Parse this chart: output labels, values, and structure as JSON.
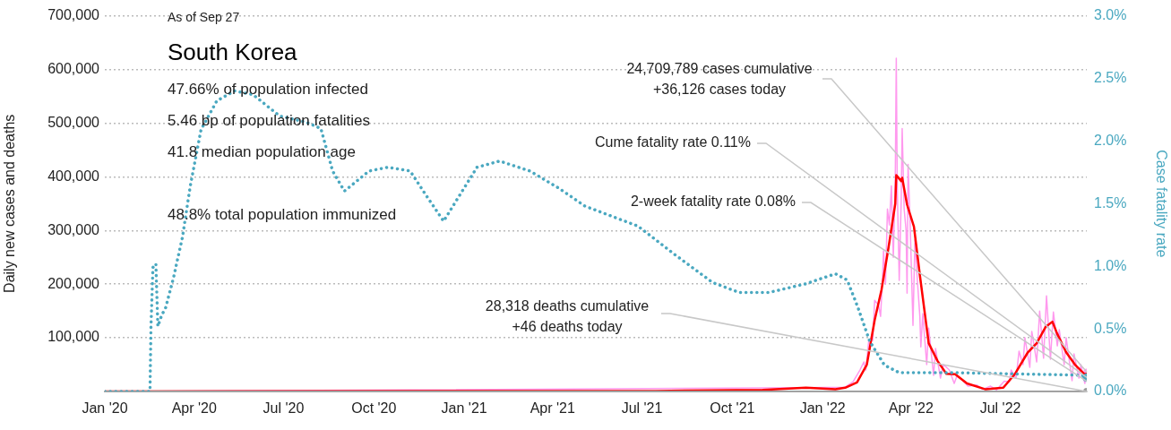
{
  "chart_data": {
    "type": "line",
    "title": "South Korea",
    "ylabel": "Daily new cases and deaths",
    "y2label": "Case fatality rate",
    "xlim": [
      "2020-01-01",
      "2022-09-27"
    ],
    "xticks": [
      {
        "value": "2020-01",
        "label": "Jan '20"
      },
      {
        "value": "2020-04",
        "label": "Apr '20"
      },
      {
        "value": "2020-07",
        "label": "Jul '20"
      },
      {
        "value": "2020-10",
        "label": "Oct '20"
      },
      {
        "value": "2021-01",
        "label": "Jan '21"
      },
      {
        "value": "2021-04",
        "label": "Apr '21"
      },
      {
        "value": "2021-07",
        "label": "Jul '21"
      },
      {
        "value": "2021-10",
        "label": "Oct '21"
      },
      {
        "value": "2022-01",
        "label": "Jan '22"
      },
      {
        "value": "2022-04",
        "label": "Apr '22"
      },
      {
        "value": "2022-07",
        "label": "Jul '22"
      }
    ],
    "ylim": [
      0,
      700000
    ],
    "yticks": [
      {
        "value": 0,
        "label": null
      },
      {
        "value": 100000,
        "label": "100,000"
      },
      {
        "value": 200000,
        "label": "200,000"
      },
      {
        "value": 300000,
        "label": "300,000"
      },
      {
        "value": 400000,
        "label": "400,000"
      },
      {
        "value": 500000,
        "label": "500,000"
      },
      {
        "value": 600000,
        "label": "600,000"
      },
      {
        "value": 700000,
        "label": "700,000"
      }
    ],
    "y2lim": [
      0,
      3
    ],
    "y2ticks": [
      {
        "value": 0,
        "label": "0.0%"
      },
      {
        "value": 0.5,
        "label": "0.5%"
      },
      {
        "value": 1,
        "label": "1.0%"
      },
      {
        "value": 1.5,
        "label": "1.5%"
      },
      {
        "value": 2,
        "label": "2.0%"
      },
      {
        "value": 2.5,
        "label": "2.5%"
      },
      {
        "value": 3,
        "label": "3.0%"
      }
    ],
    "grid": "y",
    "legend": false,
    "series": [
      {
        "color": "#ff99ee",
        "x": [
          "2020-01-01",
          "2021-12-15",
          "2022-01-24",
          "2022-02-01",
          "2022-02-08",
          "2022-02-12",
          "2022-02-14",
          "2022-02-17",
          "2022-02-20",
          "2022-02-21",
          "2022-02-23",
          "2022-02-27",
          "2022-03-01",
          "2022-03-03",
          "2022-03-04",
          "2022-03-06",
          "2022-03-08",
          "2022-03-10",
          "2022-03-12",
          "2022-03-14",
          "2022-03-16",
          "2022-03-17",
          "2022-03-18",
          "2022-03-20",
          "2022-03-22",
          "2022-03-23",
          "2022-03-25",
          "2022-03-27",
          "2022-03-28",
          "2022-03-29",
          "2022-03-31",
          "2022-04-03",
          "2022-04-05",
          "2022-04-07",
          "2022-04-10",
          "2022-04-11",
          "2022-04-13",
          "2022-04-17",
          "2022-04-19",
          "2022-04-24",
          "2022-04-26",
          "2022-05-01",
          "2022-05-04",
          "2022-05-10",
          "2022-05-15",
          "2022-05-18",
          "2022-05-25",
          "2022-05-29",
          "2022-06-07",
          "2022-06-13",
          "2022-06-21",
          "2022-06-27",
          "2022-07-05",
          "2022-07-10",
          "2022-07-12",
          "2022-07-17",
          "2022-07-20",
          "2022-07-24",
          "2022-07-26",
          "2022-07-31",
          "2022-08-02",
          "2022-08-07",
          "2022-08-10",
          "2022-08-14",
          "2022-08-17",
          "2022-08-21",
          "2022-08-24",
          "2022-08-28",
          "2022-08-30",
          "2022-09-04",
          "2022-09-06",
          "2022-09-12",
          "2022-09-14",
          "2022-09-19",
          "2022-09-21",
          "2022-09-25",
          "2022-09-27"
        ],
        "values": [
          0,
          7000,
          8000,
          18000,
          40000,
          55000,
          40000,
          95000,
          100000,
          95000,
          170000,
          160000,
          140000,
          210000,
          262000,
          200000,
          340000,
          310000,
          383000,
          250000,
          400000,
          621000,
          380000,
          207000,
          355000,
          490000,
          340000,
          300000,
          183000,
          423000,
          320000,
          123000,
          283000,
          220000,
          140000,
          83000,
          145000,
          50000,
          118000,
          30000,
          80000,
          25000,
          50000,
          40000,
          15000,
          30000,
          18000,
          10000,
          12000,
          4000,
          10000,
          3000,
          19000,
          18000,
          40000,
          25000,
          75000,
          50000,
          100000,
          45000,
          112000,
          55000,
          150000,
          62000,
          178000,
          60000,
          148000,
          85000,
          115000,
          50000,
          100000,
          20000,
          70000,
          25000,
          50000,
          15000,
          36126
        ]
      },
      {
        "color": "#ff0000",
        "x": [
          "2020-01-01",
          "2021-07-15",
          "2021-11-01",
          "2021-12-15",
          "2022-01-14",
          "2022-01-24",
          "2022-02-05",
          "2022-02-15",
          "2022-02-23",
          "2022-03-02",
          "2022-03-09",
          "2022-03-16",
          "2022-03-17",
          "2022-03-22",
          "2022-03-23",
          "2022-03-28",
          "2022-04-04",
          "2022-04-10",
          "2022-04-19",
          "2022-04-28",
          "2022-05-07",
          "2022-05-16",
          "2022-05-28",
          "2022-06-16",
          "2022-07-04",
          "2022-07-16",
          "2022-07-29",
          "2022-08-07",
          "2022-08-16",
          "2022-08-23",
          "2022-08-28",
          "2022-09-06",
          "2022-09-15",
          "2022-09-27"
        ],
        "values": [
          0,
          1000,
          3000,
          7000,
          4000,
          7000,
          17000,
          50000,
          133000,
          190000,
          267000,
          350000,
          403000,
          392000,
          398000,
          348000,
          307000,
          217000,
          90000,
          57000,
          33000,
          32000,
          15000,
          4000,
          7000,
          33000,
          73000,
          90000,
          120000,
          130000,
          107000,
          73000,
          50000,
          28000
        ]
      },
      {
        "color": "#999999",
        "x": [
          "2020-01-01",
          "2022-09-27"
        ],
        "values": [
          0,
          0
        ]
      },
      {
        "color": "#4aa8c0",
        "axis": "y2",
        "line_style": "dotted",
        "x": [
          "2020-01-01",
          "2020-02-16",
          "2020-02-17",
          "2020-02-19",
          "2020-02-22",
          "2020-02-24",
          "2020-02-28",
          "2020-03-03",
          "2020-03-11",
          "2020-03-20",
          "2020-03-28",
          "2020-04-08",
          "2020-04-24",
          "2020-05-12",
          "2020-05-31",
          "2020-06-27",
          "2020-07-24",
          "2020-08-08",
          "2020-08-20",
          "2020-09-01",
          "2020-09-26",
          "2020-10-15",
          "2020-11-07",
          "2020-11-22",
          "2020-12-11",
          "2020-12-26",
          "2021-01-14",
          "2021-02-06",
          "2021-03-09",
          "2021-04-08",
          "2021-05-04",
          "2021-06-27",
          "2021-08-04",
          "2021-09-11",
          "2021-10-08",
          "2021-11-07",
          "2021-12-15",
          "2022-01-14",
          "2022-01-26",
          "2022-02-06",
          "2022-02-18",
          "2022-03-05",
          "2022-03-20",
          "2022-05-17",
          "2022-09-22",
          "2022-09-27"
        ],
        "values": [
          0,
          0,
          0.52,
          0.99,
          1.02,
          0.52,
          0.61,
          0.67,
          0.91,
          1.23,
          1.64,
          2.09,
          2.32,
          2.4,
          2.37,
          2.2,
          2.15,
          2.1,
          1.76,
          1.6,
          1.76,
          1.79,
          1.76,
          1.58,
          1.36,
          1.55,
          1.79,
          1.84,
          1.76,
          1.62,
          1.48,
          1.32,
          1.09,
          0.87,
          0.79,
          0.79,
          0.86,
          0.94,
          0.89,
          0.67,
          0.4,
          0.21,
          0.15,
          0.15,
          0.13,
          0.11
        ]
      }
    ],
    "annotations": [
      "As of Sep 27",
      "47.66% of population infected",
      "5.46 bp of population fatalities",
      "41.8 median population age",
      "48.8% total population immunized",
      {
        "text": "24,709,789 cases cumulative\n+36,126 cases today",
        "x": "2022-09-27",
        "y": 36126
      },
      {
        "text": "Cume fatality rate 0.11%",
        "x": "2022-09-27",
        "y": 26000
      },
      {
        "text": "2-week fatality rate 0.08%",
        "x": "2022-09-27",
        "y": 19000
      },
      {
        "text": "28,318 deaths cumulative\n+46 deaths today",
        "x": "2022-09-27",
        "y": 0
      }
    ]
  }
}
